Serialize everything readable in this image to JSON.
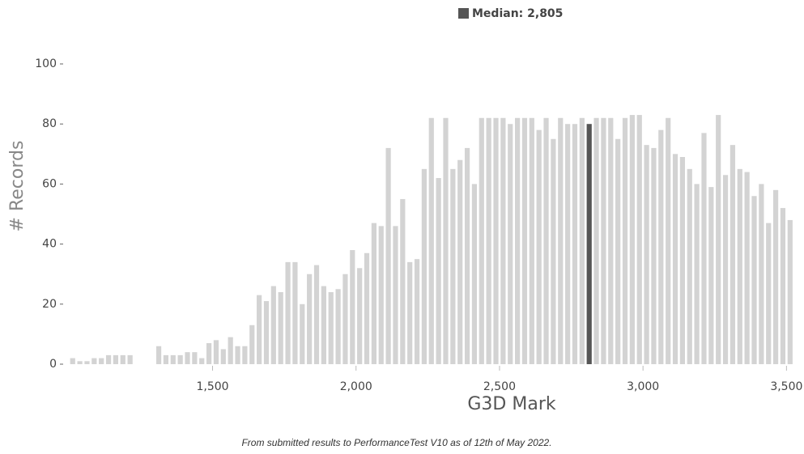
{
  "chart_data": {
    "type": "histogram",
    "xlabel": "G3D Mark",
    "ylabel": "# Records",
    "footnote": "From submitted results to PerformanceTest V10 as of 12th of May 2022.",
    "median": {
      "label": "Median: 2,805",
      "value": 2805,
      "color": "#555555"
    },
    "color": "#d3d3d3",
    "bins": [
      1000,
      1025,
      1050,
      1075,
      1100,
      1125,
      1150,
      1175,
      1200,
      1225,
      1250,
      1275,
      1300,
      1325,
      1350,
      1375,
      1400,
      1425,
      1450,
      1475,
      1500,
      1525,
      1550,
      1575,
      1600,
      1625,
      1650,
      1675,
      1700,
      1725,
      1750,
      1775,
      1800,
      1825,
      1850,
      1875,
      1900,
      1925,
      1950,
      1975,
      2000,
      2025,
      2050,
      2075,
      2100,
      2125,
      2150,
      2175,
      2200,
      2225,
      2250,
      2275,
      2300,
      2325,
      2350,
      2375,
      2400,
      2425,
      2450,
      2475,
      2500,
      2525,
      2550,
      2575,
      2600,
      2625,
      2650,
      2675,
      2700,
      2725,
      2750,
      2775,
      2800,
      2825,
      2850,
      2875,
      2900,
      2925,
      2950,
      2975,
      3000,
      3025,
      3050,
      3075,
      3100,
      3125,
      3150,
      3175,
      3200,
      3225,
      3250,
      3275,
      3300,
      3325,
      3350,
      3375,
      3400,
      3425,
      3450,
      3475,
      3500,
      3525
    ],
    "values": [
      2,
      1,
      1,
      2,
      2,
      3,
      3,
      3,
      3,
      0,
      0,
      0,
      6,
      3,
      3,
      3,
      4,
      4,
      2,
      7,
      8,
      5,
      9,
      6,
      6,
      13,
      23,
      21,
      26,
      24,
      34,
      34,
      20,
      30,
      33,
      26,
      24,
      25,
      30,
      38,
      32,
      37,
      47,
      46,
      72,
      46,
      55,
      34,
      35,
      65,
      82,
      62,
      82,
      65,
      68,
      72,
      60,
      82,
      82,
      82,
      82,
      80,
      82,
      82,
      82,
      78,
      82,
      75,
      82,
      80,
      80,
      82,
      80,
      82,
      82,
      82,
      75,
      82,
      83,
      83,
      73,
      72,
      78,
      82,
      70,
      69,
      65,
      60,
      77,
      59,
      83,
      63,
      73,
      65,
      64,
      56,
      60,
      47,
      58,
      52,
      48
    ],
    "xlim": [
      985,
      3530
    ],
    "ylim": [
      0,
      100
    ],
    "xticks": [
      {
        "value": 1500,
        "label": "1,500"
      },
      {
        "value": 2000,
        "label": "2,000"
      },
      {
        "value": 2500,
        "label": "2,500"
      },
      {
        "value": 3000,
        "label": "3,000"
      },
      {
        "value": 3500,
        "label": "3,500"
      }
    ],
    "yticks": [
      0,
      20,
      40,
      60,
      80,
      100
    ]
  }
}
